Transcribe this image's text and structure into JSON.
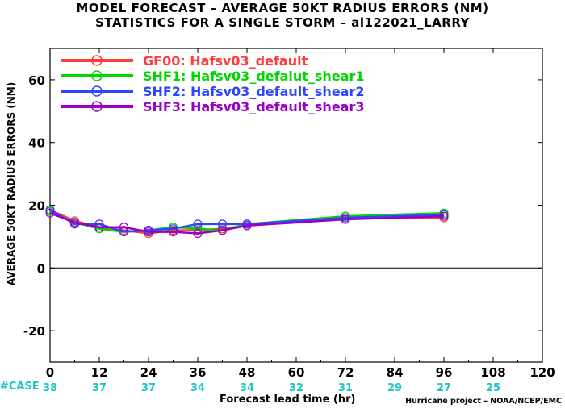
{
  "title_line1": "MODEL FORECAST – AVERAGE 50KT RADIUS ERRORS (NM)",
  "title_line2": "STATISTICS FOR A SINGLE STORM – al122021_LARRY",
  "credit": "Hurricane project – NOAA/NCEP/EMC",
  "cases_label": "#CASE",
  "chart_data": {
    "type": "line",
    "xlabel": "Forecast lead time (hr)",
    "ylabel": "AVERAGE 50KT RADIUS ERRORS (NM)",
    "xlim": [
      0,
      120
    ],
    "ylim": [
      -30,
      70
    ],
    "xticks": [
      0,
      12,
      24,
      36,
      48,
      60,
      72,
      84,
      96,
      108,
      120
    ],
    "yticks": [
      -20,
      0,
      20,
      40,
      60
    ],
    "grid": false,
    "zero_line": true,
    "legend_position": "top-left",
    "case_counts": {
      "x": [
        0,
        12,
        24,
        36,
        48,
        60,
        72,
        84,
        96,
        108
      ],
      "values": [
        38,
        37,
        37,
        34,
        34,
        32,
        31,
        29,
        27,
        25
      ]
    },
    "series": [
      {
        "name": "GF00: Hafsv03_default",
        "color": "#ff3b3b",
        "x": [
          0,
          6,
          12,
          18,
          24,
          30,
          36,
          42,
          48,
          72,
          96
        ],
        "values": [
          18.5,
          15,
          13,
          12,
          11,
          12,
          12,
          12.5,
          13.5,
          16,
          16
        ]
      },
      {
        "name": "SHF1: Hafsv03_defalut_shear1",
        "color": "#00d700",
        "x": [
          0,
          6,
          12,
          18,
          24,
          30,
          36,
          42,
          48,
          72,
          96
        ],
        "values": [
          18,
          14.5,
          12.5,
          11.5,
          12,
          13,
          12.5,
          12,
          14,
          16.5,
          17.5
        ]
      },
      {
        "name": "SHF2: Hafsv03_default_shear2",
        "color": "#2f45ff",
        "x": [
          0,
          6,
          12,
          18,
          24,
          30,
          36,
          42,
          48,
          72,
          96
        ],
        "values": [
          18.5,
          14,
          14,
          11.5,
          12,
          12.5,
          14,
          14,
          14,
          16,
          17
        ]
      },
      {
        "name": "SHF3: Hafsv03_default_shear3",
        "color": "#9a00c8",
        "x": [
          0,
          6,
          12,
          18,
          24,
          30,
          36,
          42,
          48,
          72,
          96
        ],
        "values": [
          17.5,
          14.5,
          13,
          13,
          11.5,
          11.5,
          11,
          12,
          13.5,
          15.5,
          16.5
        ]
      }
    ]
  }
}
